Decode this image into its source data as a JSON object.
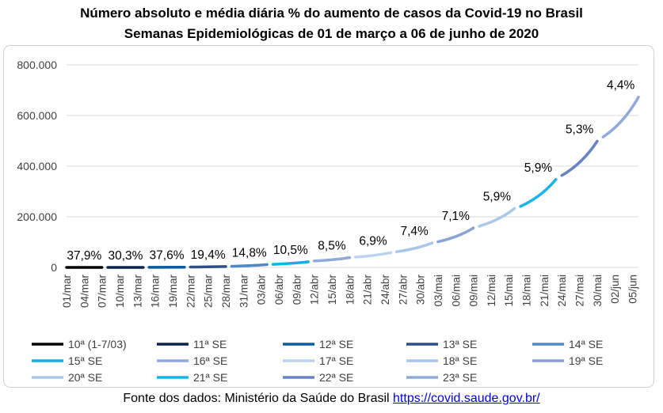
{
  "title": "Número absoluto e média diária % do aumento de casos da Covid-19 no Brasil",
  "subtitle": "Semanas Epidemiológicas de 01 de março a 06 de junho de 2020",
  "source": {
    "label": "Fonte dos dados: Ministério da Saúde do Brasil",
    "link_text": "https://covid.saude.gov.br/"
  },
  "chart_data": {
    "type": "line",
    "ylim": [
      0,
      800000
    ],
    "yticks": [
      0,
      200000,
      400000,
      600000,
      800000
    ],
    "ytick_labels": [
      "0",
      "200.000",
      "400.000",
      "600.000",
      "800.000"
    ],
    "grid": true,
    "x_tick_labels": [
      "01/mar",
      "04/mar",
      "07/mar",
      "10/mar",
      "13/mar",
      "16/mar",
      "19/mar",
      "22/mar",
      "25/mar",
      "28/mar",
      "31/mar",
      "03/abr",
      "06/abr",
      "09/abr",
      "12/abr",
      "15/abr",
      "18/abr",
      "21/abr",
      "24/abr",
      "27/abr",
      "30/abr",
      "03/mai",
      "06/mai",
      "09/mai",
      "12/mai",
      "15/mai",
      "18/mai",
      "21/mai",
      "24/mai",
      "27/mai",
      "30/mai",
      "02/jun",
      "05/jun"
    ],
    "legend_position": "bottom",
    "series": [
      {
        "name": "10ª (1-7/03)",
        "color": "#000000",
        "label": "37,9%",
        "values": [
          [
            0,
            2
          ],
          [
            6,
            19
          ]
        ]
      },
      {
        "name": "11ª SE",
        "color": "#0c2350",
        "label": "30,3%",
        "values": [
          [
            7,
            25
          ],
          [
            13,
            121
          ]
        ]
      },
      {
        "name": "12ª SE",
        "color": "#0c5a9e",
        "label": "37,6%",
        "values": [
          [
            14,
            200
          ],
          [
            20,
            1021
          ]
        ]
      },
      {
        "name": "13ª SE",
        "color": "#2b4f86",
        "label": "19,4%",
        "values": [
          [
            21,
            1546
          ],
          [
            27,
            3417
          ]
        ]
      },
      {
        "name": "14ª SE",
        "color": "#4e8ac8",
        "label": "14,8%",
        "values": [
          [
            28,
            4256
          ],
          [
            34,
            11130
          ]
        ]
      },
      {
        "name": "15ª SE",
        "color": "#13b0e6",
        "label": "10,5%",
        "values": [
          [
            35,
            12056
          ],
          [
            41,
            22169
          ]
        ]
      },
      {
        "name": "16ª SE",
        "color": "#8fa9db",
        "label": "8,5%",
        "values": [
          [
            42,
            25262
          ],
          [
            48,
            38654
          ]
        ]
      },
      {
        "name": "17ª SE",
        "color": "#bcd3ee",
        "label": "6,9%",
        "values": [
          [
            49,
            40581
          ],
          [
            55,
            58509
          ]
        ]
      },
      {
        "name": "18ª SE",
        "color": "#a9c5ea",
        "label": "7,4%",
        "values": [
          [
            56,
            61888
          ],
          [
            62,
            96559
          ]
        ]
      },
      {
        "name": "19ª SE",
        "color": "#8aa3d2",
        "label": "7,1%",
        "values": [
          [
            63,
            101147
          ],
          [
            69,
            155939
          ]
        ]
      },
      {
        "name": "20ª SE",
        "color": "#aac8ea",
        "label": "5,9%",
        "values": [
          [
            70,
            162699
          ],
          [
            76,
            233142
          ]
        ]
      },
      {
        "name": "21ª SE",
        "color": "#16b4ea",
        "label": "5,9%",
        "values": [
          [
            77,
            241080
          ],
          [
            83,
            347398
          ]
        ]
      },
      {
        "name": "22ª SE",
        "color": "#6884c4",
        "label": "5,3%",
        "values": [
          [
            84,
            363211
          ],
          [
            90,
            498440
          ]
        ]
      },
      {
        "name": "23ª SE",
        "color": "#8fa9da",
        "label": "4,4%",
        "values": [
          [
            91,
            514849
          ],
          [
            97,
            672846
          ]
        ]
      }
    ]
  }
}
